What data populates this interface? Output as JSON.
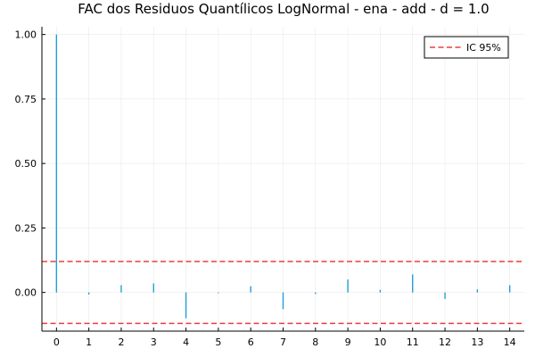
{
  "chart_data": {
    "type": "bar",
    "title": "FAC dos Residuos Quantílicos LogNormal - ena - add - d = 1.0",
    "xlabel": "",
    "ylabel": "",
    "x": [
      0,
      1,
      2,
      3,
      4,
      5,
      6,
      7,
      8,
      9,
      10,
      11,
      12,
      13,
      14
    ],
    "values": [
      1.0,
      -0.008,
      0.028,
      0.035,
      -0.1,
      -0.003,
      0.024,
      -0.065,
      -0.006,
      0.05,
      0.01,
      0.07,
      -0.025,
      0.012,
      0.028
    ],
    "xticks": [
      "0",
      "1",
      "2",
      "3",
      "4",
      "5",
      "6",
      "7",
      "8",
      "9",
      "10",
      "11",
      "12",
      "13",
      "14"
    ],
    "yticks": [
      "0.00",
      "0.25",
      "0.50",
      "0.75",
      "1.00"
    ],
    "ytick_values": [
      0.0,
      0.25,
      0.5,
      0.75,
      1.0
    ],
    "xlim": [
      -0.45,
      14.45
    ],
    "ylim": [
      -0.15,
      1.03
    ],
    "ci": {
      "label": "IC 95%",
      "upper": 0.12,
      "lower": -0.12,
      "color": "#e8403b"
    },
    "bar_color": "#1f9fd6",
    "grid": true,
    "legend_position": "top-right"
  }
}
